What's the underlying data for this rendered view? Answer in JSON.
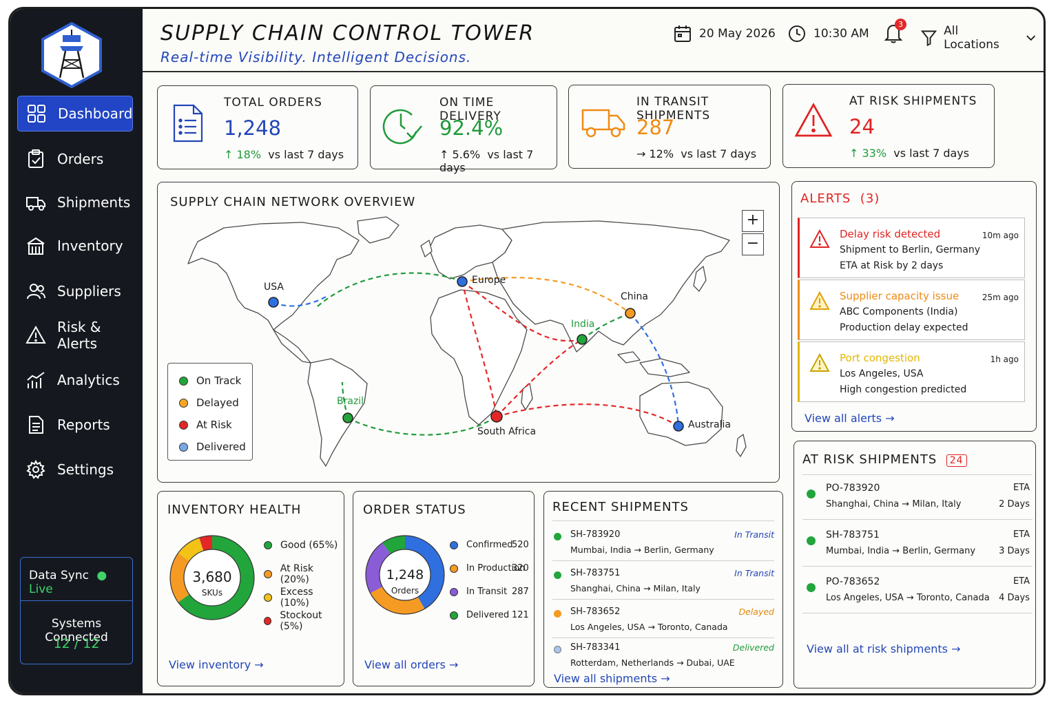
{
  "app": {
    "title": "SUPPLY CHAIN CONTROL TOWER",
    "subtitle": "Real-time Visibility. Intelligent Decisions."
  },
  "header": {
    "date": "20 May 2026",
    "time": "10:30 AM",
    "notifications": "3",
    "location_filter": "All Locations"
  },
  "sidebar": {
    "items": [
      {
        "label": "Dashboard",
        "icon": "dashboard-icon"
      },
      {
        "label": "Orders",
        "icon": "orders-icon"
      },
      {
        "label": "Shipments",
        "icon": "truck-icon"
      },
      {
        "label": "Inventory",
        "icon": "warehouse-icon"
      },
      {
        "label": "Suppliers",
        "icon": "users-icon"
      },
      {
        "label": "Risk & Alerts",
        "icon": "warning-icon"
      },
      {
        "label": "Analytics",
        "icon": "chart-icon"
      },
      {
        "label": "Reports",
        "icon": "report-icon"
      },
      {
        "label": "Settings",
        "icon": "gear-icon"
      }
    ],
    "sync_label": "Data Sync",
    "sync_status": "Live",
    "systems_label": "Systems Connected",
    "systems_count": "12 / 12"
  },
  "kpis": [
    {
      "label": "TOTAL ORDERS",
      "value": "1,248",
      "change": "18%",
      "period": "vs last 7 days",
      "color": "#2346b8"
    },
    {
      "label": "ON TIME DELIVERY",
      "value": "92.4%",
      "change": "5.6%",
      "period": "vs last 7 days",
      "color": "#1f9a3a"
    },
    {
      "label": "IN TRANSIT SHIPMENTS",
      "value": "287",
      "change": "12%",
      "period": "vs last 7 days",
      "color": "#f08a12"
    },
    {
      "label": "AT RISK SHIPMENTS",
      "value": "24",
      "change": "33%",
      "period": "vs last 7 days",
      "color": "#e02323"
    }
  ],
  "map": {
    "title": "SUPPLY CHAIN NETWORK OVERVIEW",
    "zoom_in": "+",
    "zoom_out": "−",
    "nodes": [
      "USA",
      "Europe",
      "China",
      "India",
      "Brazil",
      "South Africa",
      "Australia"
    ],
    "legend": [
      "On Track",
      "Delayed",
      "At Risk",
      "Delivered"
    ],
    "legend_colors": [
      "#22a53b",
      "#f5a623",
      "#e32727",
      "#7aa7e8"
    ]
  },
  "alerts": {
    "title": "ALERTS",
    "count": "(3)",
    "items": [
      {
        "title": "Delay risk detected",
        "line1": "Shipment to Berlin, Germany",
        "line2": "ETA at Risk by 2 days",
        "time": "10m ago",
        "color": "#e02323"
      },
      {
        "title": "Supplier capacity issue",
        "line1": "ABC Components (India)",
        "line2": "Production delay expected",
        "time": "25m ago",
        "color": "#f08a12"
      },
      {
        "title": "Port congestion",
        "line1": "Los Angeles, USA",
        "line2": "High congestion predicted",
        "time": "1h ago",
        "color": "#e3b600"
      }
    ],
    "view_all": "View all alerts"
  },
  "at_risk": {
    "title": "AT RISK SHIPMENTS",
    "count": "24",
    "rows": [
      {
        "id": "PO-783920",
        "route": "Shanghai, China → Milan, Italy",
        "eta_label": "ETA",
        "eta": "2 Days"
      },
      {
        "id": "SH-783751",
        "route": "Mumbai, India → Berlin, Germany",
        "eta_label": "ETA",
        "eta": "3 Days"
      },
      {
        "id": "PO-783652",
        "route": "Los Angeles, USA → Toronto, Canada",
        "eta_label": "ETA",
        "eta": "4 Days"
      }
    ],
    "view_all": "View all at risk shipments"
  },
  "inventory": {
    "title": "INVENTORY HEALTH",
    "center_value": "3,680",
    "center_label": "SKUs",
    "segments": [
      {
        "label": "Good (65%)",
        "value": 65,
        "color": "#22a53b"
      },
      {
        "label": "At Risk (20%)",
        "value": 20,
        "color": "#f59a23"
      },
      {
        "label": "Excess (10%)",
        "value": 10,
        "color": "#f2c316"
      },
      {
        "label": "Stockout (5%)",
        "value": 5,
        "color": "#e32727"
      }
    ],
    "view": "View inventory"
  },
  "orders": {
    "title": "ORDER STATUS",
    "center_value": "1,248",
    "center_label": "Orders",
    "segments": [
      {
        "label": "Confirmed",
        "value": 520,
        "color": "#2f6fe0"
      },
      {
        "label": "In Production",
        "value": 320,
        "color": "#f59a23"
      },
      {
        "label": "In Transit",
        "value": 287,
        "color": "#8a5cd6"
      },
      {
        "label": "Delivered",
        "value": 121,
        "color": "#22a53b"
      }
    ],
    "view": "View all orders"
  },
  "recent": {
    "title": "RECENT SHIPMENTS",
    "rows": [
      {
        "id": "SH-783920",
        "route": "Mumbai, India → Berlin, Germany",
        "status": "In Transit",
        "dot": "#22a53b",
        "status_color": "#2346b8"
      },
      {
        "id": "SH-783751",
        "route": "Shanghai, China → Milan, Italy",
        "status": "In Transit",
        "dot": "#22a53b",
        "status_color": "#2346b8"
      },
      {
        "id": "SH-783652",
        "route": "Los Angeles, USA → Toronto, Canada",
        "status": "Delayed",
        "dot": "#f59a23",
        "status_color": "#e08a10"
      },
      {
        "id": "SH-783341",
        "route": "Rotterdam, Netherlands → Dubai, UAE",
        "status": "Delivered",
        "dot": "#a9c6ee",
        "status_color": "#1f9a3a"
      }
    ],
    "view": "View all shipments"
  }
}
